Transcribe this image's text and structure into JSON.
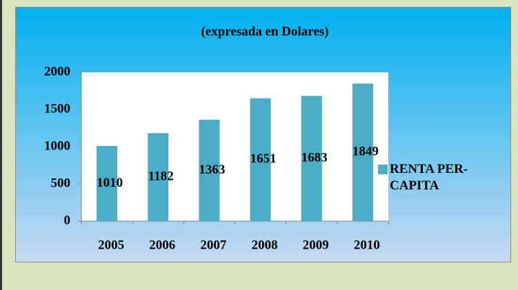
{
  "chart_data": {
    "type": "bar",
    "title": "(expresada en Dolares)",
    "categories": [
      "2005",
      "2006",
      "2007",
      "2008",
      "2009",
      "2010"
    ],
    "series": [
      {
        "name": "RENTA PER-CAPITA",
        "color": "#4bacc6",
        "values": [
          1010,
          1182,
          1363,
          1651,
          1683,
          1849
        ]
      }
    ],
    "ylim": [
      0,
      2000
    ],
    "yticks": [
      0,
      500,
      1000,
      1500,
      2000
    ],
    "grid": false,
    "legend": "right"
  }
}
